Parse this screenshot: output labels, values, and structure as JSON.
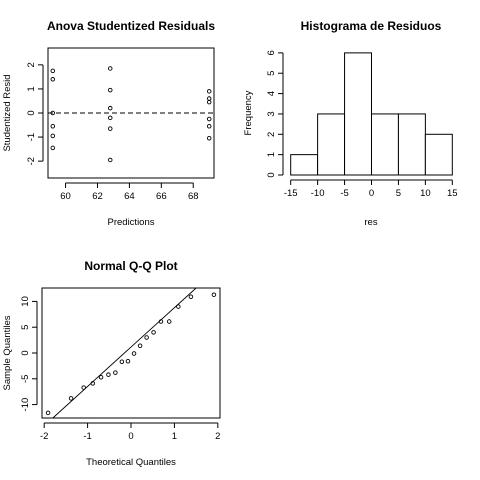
{
  "chart_data": [
    {
      "type": "scatter",
      "title": "Anova Studentized Residuals",
      "xlabel": "Predictions",
      "ylabel": "Studentized Resid",
      "xlim": [
        58.9,
        69.3
      ],
      "ylim": [
        -2.7,
        2.7
      ],
      "xticks": [
        60,
        62,
        64,
        66,
        68
      ],
      "yticks": [
        -2,
        -1,
        0,
        1,
        2
      ],
      "reference_line": {
        "y": 0,
        "style": "dashed"
      },
      "points": [
        {
          "x": 59.2,
          "y": 1.75
        },
        {
          "x": 59.2,
          "y": 1.4
        },
        {
          "x": 59.2,
          "y": 0.0
        },
        {
          "x": 59.2,
          "y": -0.55
        },
        {
          "x": 59.2,
          "y": -0.95
        },
        {
          "x": 59.2,
          "y": -1.45
        },
        {
          "x": 62.8,
          "y": 1.85
        },
        {
          "x": 62.8,
          "y": 0.95
        },
        {
          "x": 62.8,
          "y": 0.2
        },
        {
          "x": 62.8,
          "y": -0.2
        },
        {
          "x": 62.8,
          "y": -0.65
        },
        {
          "x": 62.8,
          "y": -1.95
        },
        {
          "x": 69.0,
          "y": 0.9
        },
        {
          "x": 69.0,
          "y": 0.6
        },
        {
          "x": 69.0,
          "y": 0.45
        },
        {
          "x": 69.0,
          "y": -0.25
        },
        {
          "x": 69.0,
          "y": -0.55
        },
        {
          "x": 69.0,
          "y": -1.05
        }
      ]
    },
    {
      "type": "bar",
      "title": "Histograma de Residuos",
      "xlabel": "res",
      "ylabel": "Frequency",
      "bins": [
        {
          "from": -15,
          "to": -10,
          "count": 1
        },
        {
          "from": -10,
          "to": -5,
          "count": 3
        },
        {
          "from": -5,
          "to": 0,
          "count": 6
        },
        {
          "from": 0,
          "to": 5,
          "count": 3
        },
        {
          "from": 5,
          "to": 10,
          "count": 3
        },
        {
          "from": 10,
          "to": 15,
          "count": 2
        }
      ],
      "xlim": [
        -15.5,
        15.5
      ],
      "ylim": [
        0,
        6.24
      ],
      "xticks": [
        -15,
        -10,
        -5,
        0,
        5,
        10,
        15
      ],
      "yticks": [
        0,
        1,
        2,
        3,
        4,
        5,
        6
      ]
    },
    {
      "type": "scatter",
      "title": "Normal Q-Q Plot",
      "xlabel": "Theoretical Quantiles",
      "ylabel": "Sample Quantiles",
      "xlim": [
        -2.05,
        2.05
      ],
      "ylim": [
        -12.6,
        12.6
      ],
      "xticks": [
        -2,
        -1,
        0,
        1,
        2
      ],
      "yticks": [
        -10,
        -5,
        0,
        5,
        10
      ],
      "reference_line": {
        "x1": -2.05,
        "y1": -14.5,
        "x2": 1.5,
        "y2": 12.6
      },
      "points": [
        {
          "x": -1.91,
          "y": -11.6
        },
        {
          "x": -1.38,
          "y": -8.8
        },
        {
          "x": -1.09,
          "y": -6.7
        },
        {
          "x": -0.88,
          "y": -5.9
        },
        {
          "x": -0.69,
          "y": -4.7
        },
        {
          "x": -0.52,
          "y": -4.2
        },
        {
          "x": -0.36,
          "y": -3.8
        },
        {
          "x": -0.21,
          "y": -1.7
        },
        {
          "x": -0.07,
          "y": -1.6
        },
        {
          "x": 0.07,
          "y": -0.1
        },
        {
          "x": 0.21,
          "y": 1.4
        },
        {
          "x": 0.36,
          "y": 3.0
        },
        {
          "x": 0.52,
          "y": 4.0
        },
        {
          "x": 0.69,
          "y": 6.1
        },
        {
          "x": 0.88,
          "y": 6.1
        },
        {
          "x": 1.09,
          "y": 9.0
        },
        {
          "x": 1.38,
          "y": 10.9
        },
        {
          "x": 1.91,
          "y": 11.3
        }
      ]
    }
  ]
}
